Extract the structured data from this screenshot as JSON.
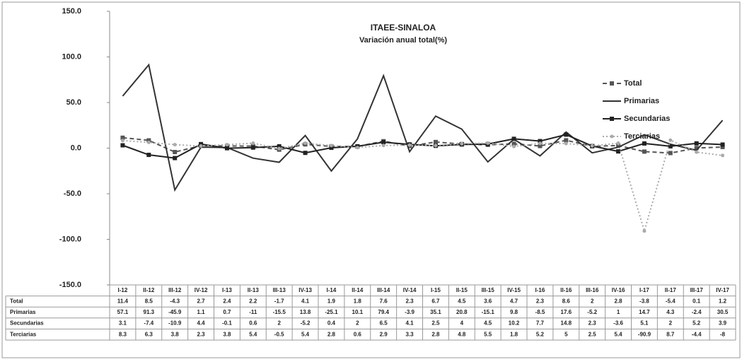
{
  "chart_data": {
    "type": "line",
    "title": "ITAEE-SINALOA",
    "subtitle": "Variación anual total(%)",
    "categories": [
      "I-12",
      "II-12",
      "III-12",
      "IV-12",
      "I-13",
      "II-13",
      "III-13",
      "IV-13",
      "I-14",
      "II-14",
      "III-14",
      "IV-14",
      "I-15",
      "II-15",
      "III-15",
      "IV-15",
      "I-16",
      "II-16",
      "III-16",
      "IV-16",
      "I-17",
      "II-17",
      "III-17",
      "IV-17"
    ],
    "series": [
      {
        "name": "Total",
        "color": "#555555",
        "dash": "6,4",
        "marker": "square",
        "values": [
          11.4,
          8.5,
          -4.3,
          2.7,
          2.4,
          2.2,
          -1.7,
          4.1,
          1.9,
          1.8,
          7.6,
          2.3,
          6.7,
          4.5,
          3.6,
          4.7,
          2.3,
          8.6,
          2.0,
          2.8,
          -3.8,
          -5.4,
          0.1,
          1.2
        ]
      },
      {
        "name": "Primarias",
        "color": "#333333",
        "dash": "none",
        "marker": "none",
        "values": [
          57.1,
          91.3,
          -45.9,
          1.1,
          0.7,
          -11.0,
          -15.5,
          13.8,
          -25.1,
          10.1,
          79.4,
          -3.9,
          35.1,
          20.8,
          -15.1,
          9.8,
          -8.5,
          17.6,
          -5.2,
          1.0,
          14.7,
          4.3,
          -2.4,
          30.5
        ]
      },
      {
        "name": "Secundarias",
        "color": "#222222",
        "dash": "none",
        "marker": "square",
        "values": [
          3.1,
          -7.4,
          -10.9,
          4.4,
          -0.1,
          0.6,
          2.0,
          -5.2,
          0.4,
          2.0,
          6.5,
          4.1,
          2.5,
          4.0,
          4.5,
          10.2,
          7.7,
          14.8,
          2.3,
          -3.6,
          5.1,
          2.0,
          5.2,
          3.9
        ]
      },
      {
        "name": "Terciarias",
        "color": "#aaaaaa",
        "dash": "2,3",
        "marker": "circle",
        "values": [
          8.3,
          6.3,
          3.8,
          2.3,
          3.8,
          5.4,
          -0.5,
          5.4,
          2.8,
          0.6,
          2.9,
          3.3,
          2.8,
          4.8,
          5.5,
          1.8,
          5.2,
          5.0,
          2.5,
          5.4,
          -90.9,
          8.7,
          -4.4,
          -8.0
        ]
      }
    ],
    "ylim": [
      -150,
      150
    ],
    "yticks": [
      {
        "value": -150,
        "label": "-150.0"
      },
      {
        "value": -100,
        "label": "-100.0"
      },
      {
        "value": -50,
        "label": "-50.0"
      },
      {
        "value": 0,
        "label": "0.0"
      },
      {
        "value": 50,
        "label": "50.0"
      },
      {
        "value": 100,
        "label": "100.0"
      },
      {
        "value": 150,
        "label": "150.0"
      }
    ],
    "legend": "right"
  }
}
